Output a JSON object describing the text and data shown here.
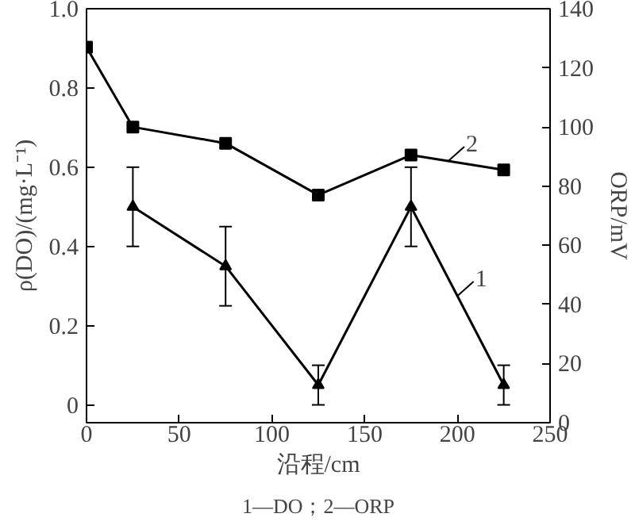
{
  "chart_data": {
    "type": "line",
    "xlabel": "沿程/cm",
    "ylabel": "ρ(DO)/(mg·L⁻¹)",
    "y2label": "ORP/mV",
    "xlim": [
      0,
      250
    ],
    "xticks": [
      0,
      50,
      100,
      150,
      200,
      250
    ],
    "ylim": [
      -0.045,
      1.0
    ],
    "yticks": [
      {
        "value": 0,
        "label": "0"
      },
      0.2,
      0.4,
      0.6,
      0.8,
      {
        "value": 1.0,
        "label": "1.0"
      }
    ],
    "y2lim": [
      0,
      140
    ],
    "y2ticks": [
      0,
      20,
      40,
      60,
      80,
      100,
      120,
      140
    ],
    "grid": false,
    "line_style": "solid",
    "series": [
      {
        "color": "#000000",
        "marker": "triangle",
        "x": [
          25,
          75,
          125,
          175,
          225
        ],
        "values": [
          0.5,
          0.35,
          0.05,
          0.5,
          0.05
        ],
        "errors": [
          0.1,
          0.1,
          0.05,
          0.1,
          0.05
        ]
      },
      {
        "color": "#000000",
        "marker": "square",
        "axis": "y2",
        "x": [
          0,
          25,
          75,
          125,
          175,
          225
        ],
        "values": [
          127,
          100,
          94.5,
          77,
          90.5,
          85.5
        ]
      }
    ],
    "annotations": [
      {
        "text": "1",
        "x": 200,
        "y": 0.275
      },
      {
        "text": "2",
        "x": 195,
        "y": 0.615
      },
      "1—DO；2—ORP"
    ]
  }
}
